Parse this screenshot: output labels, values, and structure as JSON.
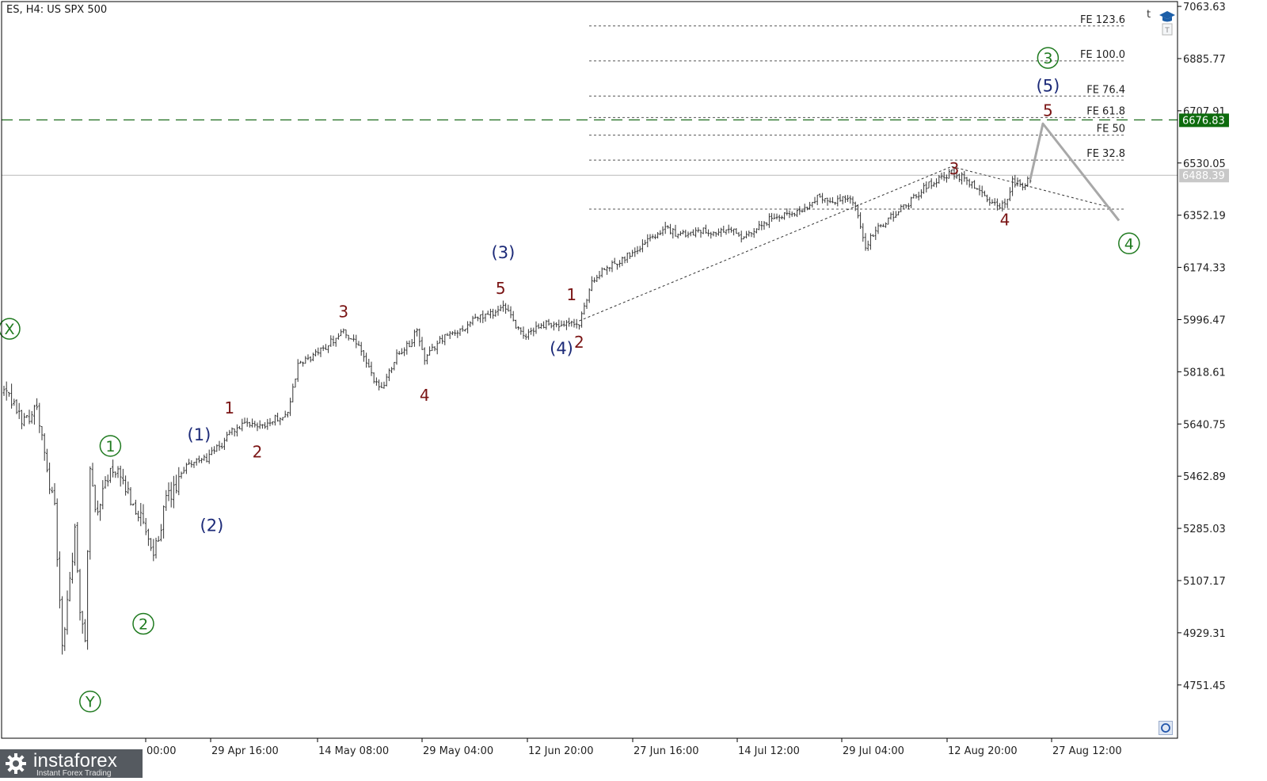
{
  "header": {
    "instrument": "ES, H4:  US SPX 500"
  },
  "branding": {
    "name": "instaforex",
    "tagline": "Instant Forex Trading"
  },
  "toolbar": {
    "corner_letter": "t"
  },
  "icons": {
    "trade_panel": "graduation-cap-icon",
    "one_click": "circle-icon",
    "logo": "gear-logo-icon"
  },
  "colors": {
    "background": "#ffffff",
    "candles": "#333333",
    "green_label": "#1f7a1f",
    "blue_label": "#1c2a78",
    "red_label": "#7a1414",
    "resistance_line": "#1b6b1b",
    "price_tag_bg": "#0d6b0d",
    "current_price_bg": "#c8c8c8",
    "projection": "#a8a8a8",
    "fib_line": "#555555"
  },
  "chart_data": {
    "type": "candlestick",
    "timeframe": "H4",
    "y_axis_labels": [
      "7063.63",
      "6885.77",
      "6707.91",
      "6530.05",
      "6352.19",
      "6174.33",
      "5996.47",
      "5818.61",
      "5640.75",
      "5462.89",
      "5285.03",
      "5107.17",
      "4929.31",
      "4751.45"
    ],
    "x_axis_labels": [
      "00:00",
      "29 Apr 16:00",
      "14 May 08:00",
      "29 May 04:00",
      "12 Jun 20:00",
      "27 Jun 16:00",
      "14 Jul 12:00",
      "29 Jul 04:00",
      "12 Aug 20:00",
      "27 Aug 12:00"
    ],
    "ylim": [
      4570,
      7080
    ],
    "horizontal_lines": [
      {
        "label": "6676.83",
        "price": 6676.83,
        "style": "long-dash",
        "tag": "green"
      },
      {
        "label": "6488.39",
        "price": 6488.39,
        "style": "solid",
        "tag": "gray"
      }
    ],
    "fib_levels": [
      {
        "label": "FE 123.6",
        "price": 6997
      },
      {
        "label": "FE 100.0",
        "price": 6878
      },
      {
        "label": "FE 76.4",
        "price": 6758
      },
      {
        "label": "FE 61.8",
        "price": 6685
      },
      {
        "label": "FE 50",
        "price": 6625
      },
      {
        "label": "FE 32.8",
        "price": 6540
      },
      {
        "label": "",
        "price": 6373
      }
    ],
    "wave_labels": [
      {
        "text": "X",
        "style": "circled",
        "color": "green",
        "x": 0,
        "price": 5965
      },
      {
        "text": "Y",
        "style": "circled",
        "color": "green",
        "x": 34,
        "price": 4695
      },
      {
        "text": "1",
        "style": "circled",
        "color": "green",
        "x": 42,
        "price": 5566
      },
      {
        "text": "2",
        "style": "circled",
        "color": "green",
        "x": 55,
        "price": 4960
      },
      {
        "text": "(1)",
        "style": "plain",
        "color": "blue",
        "x": 77,
        "price": 5604
      },
      {
        "text": "(2)",
        "style": "plain",
        "color": "blue",
        "x": 82,
        "price": 5295
      },
      {
        "text": "1",
        "style": "plain",
        "color": "red",
        "x": 89,
        "price": 5695
      },
      {
        "text": "2",
        "style": "plain",
        "color": "red",
        "x": 100,
        "price": 5545
      },
      {
        "text": "3",
        "style": "plain",
        "color": "red",
        "x": 134,
        "price": 6024
      },
      {
        "text": "4",
        "style": "plain",
        "color": "red",
        "x": 166,
        "price": 5738
      },
      {
        "text": "5",
        "style": "plain",
        "color": "red",
        "x": 196,
        "price": 6103
      },
      {
        "text": "(3)",
        "style": "plain",
        "color": "blue",
        "x": 197,
        "price": 6225
      },
      {
        "text": "(4)",
        "style": "plain",
        "color": "blue",
        "x": 220,
        "price": 5898
      },
      {
        "text": "1",
        "style": "plain",
        "color": "red",
        "x": 224,
        "price": 6081
      },
      {
        "text": "2",
        "style": "plain",
        "color": "red",
        "x": 227,
        "price": 5919
      },
      {
        "text": "3",
        "style": "plain",
        "color": "red",
        "x": 375,
        "price": 6511
      },
      {
        "text": "4",
        "style": "plain",
        "color": "red",
        "x": 395,
        "price": 6336
      },
      {
        "text": "5",
        "style": "plain",
        "color": "red",
        "x": 412,
        "price": 6709
      },
      {
        "text": "(5)",
        "style": "plain",
        "color": "blue",
        "x": 412,
        "price": 6792
      },
      {
        "text": "3",
        "style": "circled",
        "color": "green",
        "x": 412,
        "price": 6888
      },
      {
        "text": "4",
        "style": "circled",
        "color": "green",
        "x": 444,
        "price": 6256
      }
    ],
    "wedge_lines": [
      {
        "from": {
          "x": 227,
          "price": 5992
        },
        "to": {
          "x": 374,
          "price": 6518
        }
      },
      {
        "from": {
          "x": 374,
          "price": 6518
        },
        "to": {
          "x": 437,
          "price": 6378
        }
      }
    ],
    "projection_path": [
      {
        "x": 405,
        "price": 6474
      },
      {
        "x": 410,
        "price": 6664
      },
      {
        "x": 440,
        "price": 6334
      }
    ],
    "anchors": [
      {
        "x": 0,
        "price": 5750
      },
      {
        "x": 5,
        "price": 5685
      },
      {
        "x": 8,
        "price": 5650
      },
      {
        "x": 13,
        "price": 5700
      },
      {
        "x": 16,
        "price": 5530
      },
      {
        "x": 20,
        "price": 5350
      },
      {
        "x": 23,
        "price": 4870
      },
      {
        "x": 26,
        "price": 5110
      },
      {
        "x": 28,
        "price": 5270
      },
      {
        "x": 30,
        "price": 4990
      },
      {
        "x": 32,
        "price": 4920
      },
      {
        "x": 34,
        "price": 5475
      },
      {
        "x": 37,
        "price": 5320
      },
      {
        "x": 40,
        "price": 5460
      },
      {
        "x": 44,
        "price": 5480
      },
      {
        "x": 48,
        "price": 5420
      },
      {
        "x": 54,
        "price": 5320
      },
      {
        "x": 59,
        "price": 5185
      },
      {
        "x": 64,
        "price": 5380
      },
      {
        "x": 68,
        "price": 5420
      },
      {
        "x": 72,
        "price": 5508
      },
      {
        "x": 79,
        "price": 5518
      },
      {
        "x": 86,
        "price": 5570
      },
      {
        "x": 89,
        "price": 5615
      },
      {
        "x": 95,
        "price": 5635
      },
      {
        "x": 103,
        "price": 5640
      },
      {
        "x": 112,
        "price": 5680
      },
      {
        "x": 116,
        "price": 5840
      },
      {
        "x": 125,
        "price": 5890
      },
      {
        "x": 134,
        "price": 5960
      },
      {
        "x": 141,
        "price": 5890
      },
      {
        "x": 145,
        "price": 5805
      },
      {
        "x": 149,
        "price": 5760
      },
      {
        "x": 155,
        "price": 5880
      },
      {
        "x": 160,
        "price": 5910
      },
      {
        "x": 163,
        "price": 5960
      },
      {
        "x": 166,
        "price": 5855
      },
      {
        "x": 172,
        "price": 5930
      },
      {
        "x": 180,
        "price": 5960
      },
      {
        "x": 186,
        "price": 6000
      },
      {
        "x": 193,
        "price": 6020
      },
      {
        "x": 197,
        "price": 6040
      },
      {
        "x": 201,
        "price": 5990
      },
      {
        "x": 205,
        "price": 5935
      },
      {
        "x": 210,
        "price": 5970
      },
      {
        "x": 215,
        "price": 5985
      },
      {
        "x": 220,
        "price": 5970
      },
      {
        "x": 224,
        "price": 5985
      },
      {
        "x": 227,
        "price": 5975
      },
      {
        "x": 232,
        "price": 6130
      },
      {
        "x": 240,
        "price": 6185
      },
      {
        "x": 248,
        "price": 6225
      },
      {
        "x": 255,
        "price": 6275
      },
      {
        "x": 260,
        "price": 6305
      },
      {
        "x": 268,
        "price": 6285
      },
      {
        "x": 276,
        "price": 6305
      },
      {
        "x": 282,
        "price": 6290
      },
      {
        "x": 287,
        "price": 6305
      },
      {
        "x": 291,
        "price": 6270
      },
      {
        "x": 297,
        "price": 6300
      },
      {
        "x": 303,
        "price": 6345
      },
      {
        "x": 310,
        "price": 6355
      },
      {
        "x": 316,
        "price": 6375
      },
      {
        "x": 322,
        "price": 6420
      },
      {
        "x": 327,
        "price": 6395
      },
      {
        "x": 333,
        "price": 6410
      },
      {
        "x": 336,
        "price": 6375
      },
      {
        "x": 340,
        "price": 6250
      },
      {
        "x": 345,
        "price": 6310
      },
      {
        "x": 352,
        "price": 6360
      },
      {
        "x": 358,
        "price": 6400
      },
      {
        "x": 364,
        "price": 6455
      },
      {
        "x": 370,
        "price": 6480
      },
      {
        "x": 374,
        "price": 6495
      },
      {
        "x": 380,
        "price": 6475
      },
      {
        "x": 386,
        "price": 6420
      },
      {
        "x": 391,
        "price": 6385
      },
      {
        "x": 395,
        "price": 6385
      },
      {
        "x": 398,
        "price": 6470
      },
      {
        "x": 402,
        "price": 6455
      },
      {
        "x": 405,
        "price": 6474
      }
    ]
  }
}
